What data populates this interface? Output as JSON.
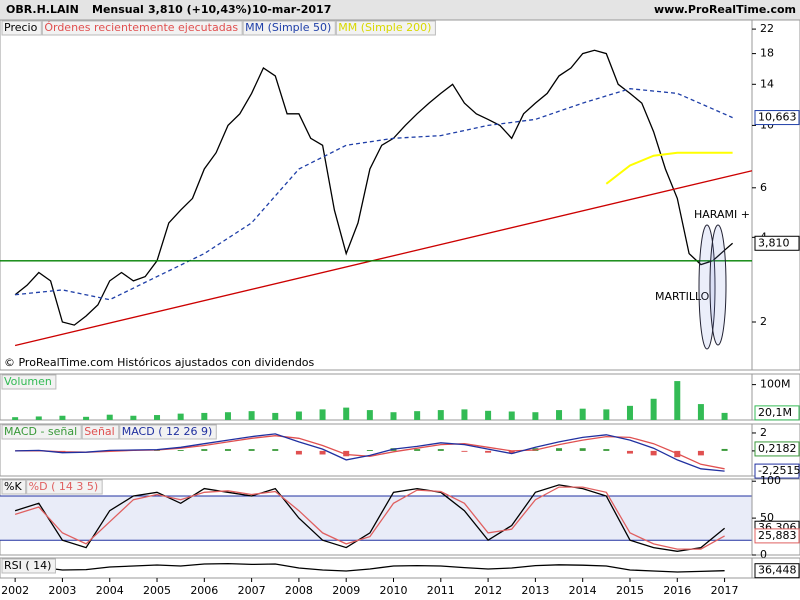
{
  "header": {
    "symbol": "OBR.H.LAIN",
    "period": "Mensual",
    "quote": "3,810 (+10,43%)",
    "date": "10-mar-2017",
    "site": "www.ProRealTime.com"
  },
  "chart_data": [
    {
      "type": "line",
      "log": true,
      "ylim": [
        1.35,
        23.7
      ],
      "yticks": [
        2,
        4,
        6,
        10,
        14,
        18,
        22
      ],
      "xlim": [
        2001.68,
        2017.58
      ],
      "orders_label": "Órdenes recientemente ejecutadas",
      "note": "© ProRealTime.com Históricos ajustados con dividendos",
      "annotations": [
        "HARAMI +",
        "MARTILLO"
      ],
      "series": [
        {
          "name": "Precio",
          "color": "#000000",
          "x": [
            2002,
            2002.25,
            2002.5,
            2002.75,
            2003,
            2003.25,
            2003.5,
            2003.75,
            2004,
            2004.25,
            2004.5,
            2004.75,
            2005,
            2005.25,
            2005.5,
            2005.75,
            2006,
            2006.25,
            2006.5,
            2006.75,
            2007,
            2007.25,
            2007.5,
            2007.75,
            2008,
            2008.25,
            2008.5,
            2008.75,
            2009,
            2009.25,
            2009.5,
            2009.75,
            2010,
            2010.25,
            2010.5,
            2010.75,
            2011,
            2011.25,
            2011.5,
            2011.75,
            2012,
            2012.25,
            2012.5,
            2012.75,
            2013,
            2013.25,
            2013.5,
            2013.75,
            2014,
            2014.25,
            2014.5,
            2014.75,
            2015,
            2015.25,
            2015.5,
            2015.75,
            2016,
            2016.25,
            2016.5,
            2016.75,
            2017,
            2017.17
          ],
          "values": [
            2.5,
            2.7,
            3.0,
            2.8,
            2.0,
            1.95,
            2.1,
            2.3,
            2.8,
            3.0,
            2.8,
            2.9,
            3.3,
            4.5,
            5.0,
            5.5,
            7,
            8,
            10,
            11,
            13,
            16,
            15,
            11,
            11,
            9,
            8.5,
            5,
            3.5,
            4.5,
            7,
            8.5,
            9,
            10,
            11,
            12,
            13,
            14,
            12,
            11,
            10.5,
            10,
            9,
            11,
            12,
            13,
            15,
            16,
            18,
            18.5,
            18,
            14,
            13,
            12,
            9.5,
            7,
            5.5,
            3.5,
            3.2,
            3.3,
            3.6,
            3.81
          ],
          "end_label": "3,810"
        },
        {
          "name": "MM (Simple 50)",
          "color": "#1f3fa8",
          "dash": true,
          "x": [
            2002,
            2003,
            2004,
            2005,
            2006,
            2007,
            2008,
            2009,
            2010,
            2011,
            2012,
            2013,
            2014,
            2015,
            2016,
            2017.17
          ],
          "values": [
            2.5,
            2.6,
            2.4,
            2.9,
            3.5,
            4.5,
            7,
            8.5,
            9,
            9.2,
            10,
            10.5,
            12,
            13.5,
            13,
            10.663
          ],
          "end_label": "10,663"
        },
        {
          "name": "MM (Simple 200)",
          "color": "#ffff00",
          "x": [
            2014.5,
            2015,
            2015.5,
            2016,
            2017.17
          ],
          "values": [
            6.2,
            7.2,
            7.8,
            8.0,
            8.0
          ]
        },
        {
          "color": "#cc0000",
          "x": [
            2002,
            2017.58
          ],
          "values": [
            1.65,
            6.9
          ]
        },
        {
          "color": "#008000",
          "x": [
            2001.68,
            2017.58
          ],
          "values": [
            3.3,
            3.3
          ]
        }
      ]
    },
    {
      "type": "bar",
      "ylim": [
        0,
        130
      ],
      "yticks": [
        {
          "value": 100,
          "label": "100M"
        }
      ],
      "xlim": [
        2001.68,
        2017.58
      ],
      "series": [
        {
          "name": "Volumen",
          "color": "#33bb55",
          "x": [
            2002,
            2002.5,
            2003,
            2003.5,
            2004,
            2004.5,
            2005,
            2005.5,
            2006,
            2006.5,
            2007,
            2007.5,
            2008,
            2008.5,
            2009,
            2009.5,
            2010,
            2010.5,
            2011,
            2011.5,
            2012,
            2012.5,
            2013,
            2013.5,
            2014,
            2014.5,
            2015,
            2015.5,
            2016,
            2016.5,
            2017
          ],
          "values": [
            8,
            10,
            12,
            9,
            15,
            12,
            14,
            18,
            20,
            22,
            25,
            20,
            24,
            30,
            35,
            28,
            22,
            25,
            28,
            30,
            26,
            24,
            22,
            28,
            32,
            30,
            40,
            60,
            110,
            45,
            20.1
          ],
          "end_label": "20,1M"
        }
      ]
    },
    {
      "type": "line",
      "ylim": [
        -2.8,
        3
      ],
      "yticks": [
        0,
        2
      ],
      "xlim": [
        2001.68,
        2017.58
      ],
      "series": [
        {
          "name": "MACD - señal",
          "kind": "bar",
          "color": "#3a9a3a",
          "x": [
            2002,
            2002.5,
            2003,
            2003.5,
            2004,
            2004.5,
            2005,
            2005.5,
            2006,
            2006.5,
            2007,
            2007.5,
            2008,
            2008.5,
            2009,
            2009.5,
            2010,
            2010.5,
            2011,
            2011.5,
            2012,
            2012.5,
            2013,
            2013.5,
            2014,
            2014.5,
            2015,
            2015.5,
            2016,
            2016.5,
            2017
          ],
          "values": [
            0,
            0.03,
            -0.1,
            0,
            0.1,
            0.05,
            0.05,
            0.1,
            0.2,
            0.2,
            0.2,
            0.2,
            -0.4,
            -0.4,
            -0.6,
            0.1,
            0.3,
            0.2,
            0.2,
            -0.1,
            -0.2,
            -0.3,
            0.3,
            0.3,
            0.3,
            0.2,
            -0.3,
            -0.5,
            -0.7,
            -0.5,
            0.2182
          ],
          "end_label": "0,2182"
        },
        {
          "name": "Señal",
          "color": "#e05050",
          "x": [
            2002,
            2002.5,
            2003,
            2003.5,
            2004,
            2004.5,
            2005,
            2005.5,
            2006,
            2006.5,
            2007,
            2007.5,
            2008,
            2008.5,
            2009,
            2009.5,
            2010,
            2010.5,
            2011,
            2011.5,
            2012,
            2012.5,
            2013,
            2013.5,
            2014,
            2014.5,
            2015,
            2015.5,
            2016,
            2016.5,
            2017
          ],
          "values": [
            0,
            0.02,
            -0.1,
            -0.15,
            -0.05,
            0.05,
            0.1,
            0.3,
            0.6,
            1.0,
            1.4,
            1.7,
            1.4,
            0.6,
            -0.4,
            -0.6,
            -0.1,
            0.3,
            0.7,
            0.8,
            0.4,
            0,
            0.1,
            0.7,
            1.2,
            1.6,
            1.5,
            0.8,
            -0.3,
            -1.5,
            -2.0
          ]
        },
        {
          "name": "MACD ( 12 26 9)",
          "color": "#2030a0",
          "x": [
            2002,
            2002.5,
            2003,
            2003.5,
            2004,
            2004.5,
            2005,
            2005.5,
            2006,
            2006.5,
            2007,
            2007.5,
            2008,
            2008.5,
            2009,
            2009.5,
            2010,
            2010.5,
            2011,
            2011.5,
            2012,
            2012.5,
            2013,
            2013.5,
            2014,
            2014.5,
            2015,
            2015.5,
            2016,
            2016.5,
            2017
          ],
          "values": [
            0,
            0.05,
            -0.2,
            -0.15,
            0.05,
            0.1,
            0.15,
            0.4,
            0.8,
            1.2,
            1.6,
            1.9,
            1.0,
            0.2,
            -1.0,
            -0.5,
            0.2,
            0.5,
            0.9,
            0.7,
            0.2,
            -0.3,
            0.4,
            1.0,
            1.5,
            1.8,
            1.2,
            0.3,
            -1.0,
            -2.0,
            -2.2515
          ],
          "end_label": "-2,2515"
        }
      ]
    },
    {
      "type": "line",
      "ylim": [
        0,
        103
      ],
      "yticks": [
        0,
        50,
        100
      ],
      "hlines": [
        80,
        20
      ],
      "xlim": [
        2001.68,
        2017.58
      ],
      "series": [
        {
          "name": "%K",
          "color": "#000000",
          "x": [
            2002,
            2002.5,
            2003,
            2003.5,
            2004,
            2004.5,
            2005,
            2005.5,
            2006,
            2006.5,
            2007,
            2007.5,
            2008,
            2008.5,
            2009,
            2009.5,
            2010,
            2010.5,
            2011,
            2011.5,
            2012,
            2012.5,
            2013,
            2013.5,
            2014,
            2014.5,
            2015,
            2015.5,
            2016,
            2016.5,
            2017
          ],
          "values": [
            60,
            70,
            20,
            10,
            60,
            80,
            85,
            70,
            90,
            85,
            80,
            90,
            50,
            20,
            10,
            30,
            85,
            90,
            85,
            60,
            20,
            40,
            85,
            95,
            90,
            80,
            20,
            10,
            5,
            10,
            36.306
          ],
          "end_label": "36,306"
        },
        {
          "name": "%D ( 14 3 5)",
          "color": "#e06060",
          "x": [
            2002,
            2002.5,
            2003,
            2003.5,
            2004,
            2004.5,
            2005,
            2005.5,
            2006,
            2006.5,
            2007,
            2007.5,
            2008,
            2008.5,
            2009,
            2009.5,
            2010,
            2010.5,
            2011,
            2011.5,
            2012,
            2012.5,
            2013,
            2013.5,
            2014,
            2014.5,
            2015,
            2015.5,
            2016,
            2016.5,
            2017
          ],
          "values": [
            55,
            65,
            30,
            15,
            45,
            75,
            82,
            75,
            85,
            87,
            82,
            86,
            60,
            30,
            15,
            25,
            70,
            88,
            86,
            70,
            30,
            35,
            75,
            92,
            92,
            85,
            30,
            15,
            8,
            8,
            25.883
          ],
          "end_label": "25,883"
        }
      ]
    },
    {
      "type": "line",
      "ylim": [
        0,
        100
      ],
      "yticks": [],
      "xlim": [
        2001.68,
        2017.58
      ],
      "xticks": [
        2002,
        2003,
        2004,
        2005,
        2006,
        2007,
        2008,
        2009,
        2010,
        2011,
        2012,
        2013,
        2014,
        2015,
        2016,
        2017
      ],
      "series": [
        {
          "name": "RSI ( 14)",
          "color": "#000000",
          "x": [
            2002,
            2002.5,
            2003,
            2003.5,
            2004,
            2004.5,
            2005,
            2005.5,
            2006,
            2006.5,
            2007,
            2007.5,
            2008,
            2008.5,
            2009,
            2009.5,
            2010,
            2010.5,
            2011,
            2011.5,
            2012,
            2012.5,
            2013,
            2013.5,
            2014,
            2014.5,
            2015,
            2015.5,
            2016,
            2016.5,
            2017
          ],
          "values": [
            50,
            55,
            40,
            42,
            55,
            60,
            65,
            60,
            70,
            72,
            68,
            70,
            50,
            40,
            35,
            45,
            60,
            62,
            60,
            52,
            45,
            50,
            62,
            66,
            64,
            60,
            40,
            35,
            30,
            33,
            36.448
          ],
          "end_label": "36,448"
        }
      ]
    }
  ]
}
